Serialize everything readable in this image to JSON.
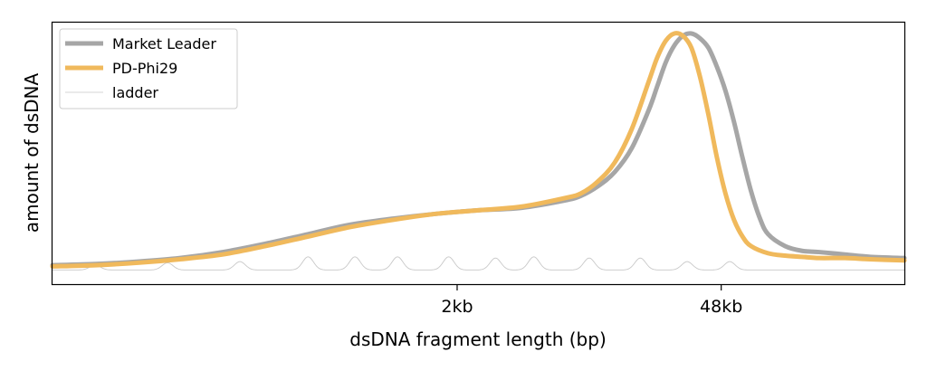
{
  "chart_data": {
    "type": "line",
    "title": "",
    "xlabel": "dsDNA fragment length (bp)",
    "ylabel": "amount of dsDNA",
    "xlim": [
      0,
      100
    ],
    "ylim": [
      0,
      1.05
    ],
    "grid": false,
    "legend_position": "top-left",
    "x_ticks": [
      {
        "label": "2kb",
        "pos": 47.5
      },
      {
        "label": "48kb",
        "pos": 78.5
      }
    ],
    "series": [
      {
        "name": "Market Leader",
        "color": "#a6a6a6",
        "style": "thick",
        "x": [
          0,
          5,
          10,
          15,
          20,
          25,
          30,
          35,
          40,
          45,
          50,
          55,
          60,
          62,
          64,
          66,
          68,
          70,
          71,
          72,
          73,
          74,
          75,
          76,
          77,
          78,
          79,
          80,
          81,
          82,
          83,
          84,
          86,
          88,
          90,
          93,
          96,
          100
        ],
        "y": [
          0.03,
          0.035,
          0.045,
          0.06,
          0.085,
          0.12,
          0.16,
          0.2,
          0.225,
          0.245,
          0.26,
          0.27,
          0.3,
          0.32,
          0.36,
          0.42,
          0.52,
          0.68,
          0.78,
          0.88,
          0.95,
          0.99,
          1.0,
          0.98,
          0.94,
          0.86,
          0.76,
          0.63,
          0.48,
          0.34,
          0.23,
          0.16,
          0.11,
          0.09,
          0.085,
          0.075,
          0.065,
          0.06
        ]
      },
      {
        "name": "PD-Phi29",
        "color": "#f0b95c",
        "style": "thick",
        "x": [
          0,
          5,
          10,
          15,
          20,
          25,
          30,
          35,
          40,
          45,
          50,
          55,
          60,
          62,
          64,
          66,
          68,
          70,
          71,
          72,
          73,
          74,
          75,
          76,
          77,
          78,
          79,
          80,
          81,
          82,
          84,
          86,
          88,
          90,
          93,
          96,
          100
        ],
        "y": [
          0.025,
          0.03,
          0.04,
          0.055,
          0.075,
          0.11,
          0.15,
          0.19,
          0.22,
          0.245,
          0.26,
          0.275,
          0.31,
          0.33,
          0.38,
          0.46,
          0.6,
          0.8,
          0.9,
          0.97,
          1.0,
          0.99,
          0.94,
          0.82,
          0.66,
          0.48,
          0.33,
          0.22,
          0.15,
          0.11,
          0.08,
          0.07,
          0.065,
          0.06,
          0.06,
          0.055,
          0.05
        ]
      },
      {
        "name": "ladder",
        "color": "#c8c8c8",
        "style": "thin",
        "baseline": 0.01,
        "peaks": [
          {
            "x": 5,
            "h": 0.02
          },
          {
            "x": 13.5,
            "h": 0.03
          },
          {
            "x": 22,
            "h": 0.035
          },
          {
            "x": 30,
            "h": 0.055
          },
          {
            "x": 35.5,
            "h": 0.055
          },
          {
            "x": 40.5,
            "h": 0.055
          },
          {
            "x": 46.5,
            "h": 0.055
          },
          {
            "x": 52,
            "h": 0.05
          },
          {
            "x": 56.5,
            "h": 0.055
          },
          {
            "x": 63,
            "h": 0.05
          },
          {
            "x": 69,
            "h": 0.05
          },
          {
            "x": 74.5,
            "h": 0.035
          },
          {
            "x": 79.5,
            "h": 0.035
          }
        ]
      }
    ]
  }
}
